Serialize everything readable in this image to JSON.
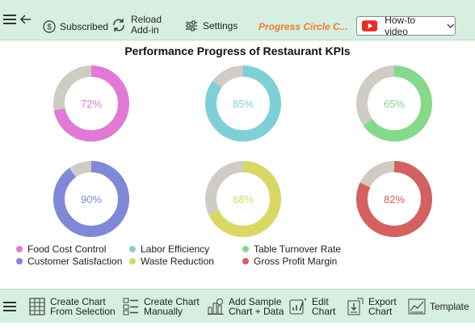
{
  "toolbar": {
    "subscribed_label": "Subscribed",
    "reload_line1": "Reload",
    "reload_line2": "Add-in",
    "settings_label": "Settings",
    "app_title": "Progress Circle C...",
    "video_label": "How-to video",
    "title_color": "#f07c2a"
  },
  "chart_data": {
    "type": "progress-circle",
    "title": "Performance Progress of Restaurant KPIs",
    "items": [
      {
        "name": "Food Cost Control",
        "value": 72,
        "label": "72%",
        "color": "#e07ad6"
      },
      {
        "name": "Labor Efficiency",
        "value": 85,
        "label": "85%",
        "color": "#7fd0d6"
      },
      {
        "name": "Table Turnover Rate",
        "value": 65,
        "label": "65%",
        "color": "#86d98b"
      },
      {
        "name": "Customer Satisfaction",
        "value": 90,
        "label": "90%",
        "color": "#8088d8"
      },
      {
        "name": "Waste Reduction",
        "value": 68,
        "label": "68%",
        "color": "#d9d865"
      },
      {
        "name": "Gross Profit Margin",
        "value": 82,
        "label": "82%",
        "color": "#d46060"
      }
    ],
    "track_color": "#cfccc6",
    "legend_position": "bottom-left"
  },
  "bottom_toolbar": {
    "create_selection_line1": "Create Chart",
    "create_selection_line2": "From Selection",
    "create_manual_line1": "Create Chart",
    "create_manual_line2": "Manually",
    "add_sample_line1": "Add Sample",
    "add_sample_line2": "Chart + Data",
    "edit_line1": "Edit",
    "edit_line2": "Chart",
    "export_line1": "Export",
    "export_line2": "Chart",
    "template_label": "Template"
  }
}
